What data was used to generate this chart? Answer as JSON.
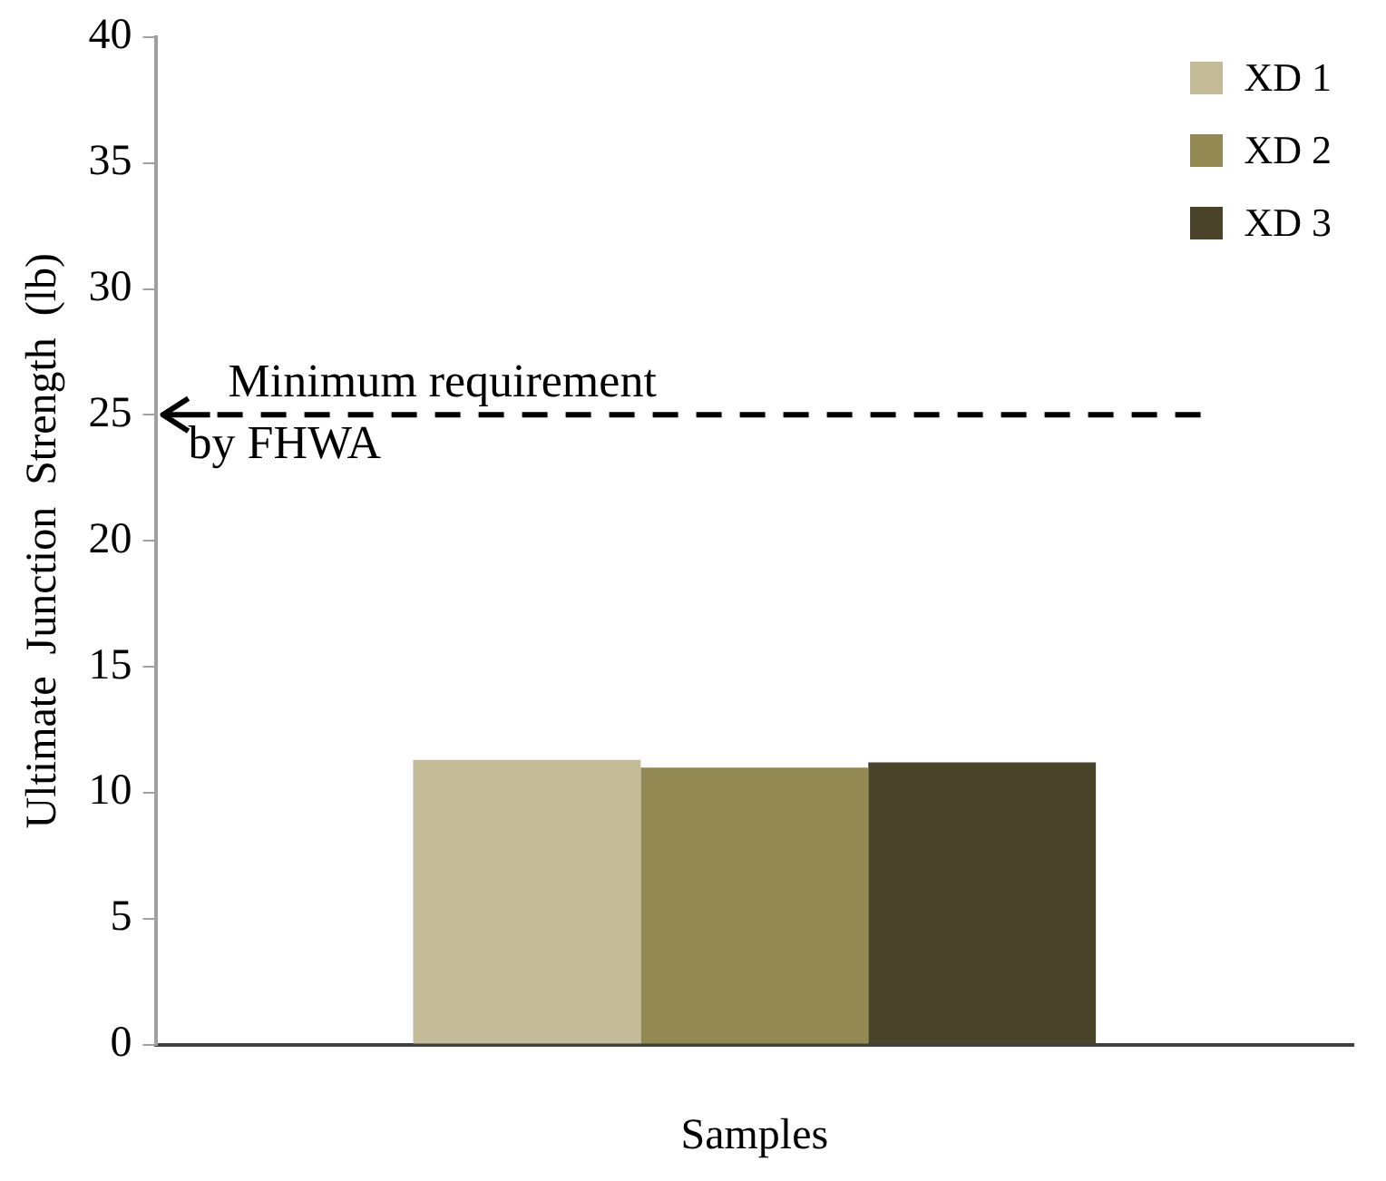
{
  "chart_data": {
    "type": "bar",
    "xlabel": "Samples",
    "ylabel": "Ultimate  Junction  Strength  (lb)",
    "categories": [
      null
    ],
    "series": [
      {
        "name": "XD 1",
        "color": "#c4bc96",
        "values": [
          11.3
        ]
      },
      {
        "name": "XD 2",
        "color": "#938953",
        "values": [
          11.0
        ]
      },
      {
        "name": "XD 3",
        "color": "#494429",
        "values": [
          11.2
        ]
      }
    ],
    "ylim": [
      0,
      40
    ],
    "yticks": [
      0,
      5,
      10,
      15,
      20,
      25,
      30,
      35,
      40
    ],
    "grid": false,
    "legend": "top right",
    "ref_lines": [
      {
        "axis": "y",
        "value": 25,
        "label": "Minimum requirement\nby FHWA",
        "color": "#000000",
        "line_style": "dashed"
      }
    ]
  }
}
